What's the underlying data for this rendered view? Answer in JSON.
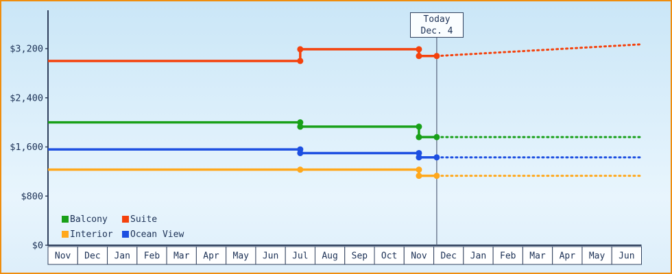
{
  "colors": {
    "frame_border": "#ef8d0e",
    "axis": "#2f3f5c",
    "text": "#1b3055",
    "month_box_fill": "#ffffff",
    "today_line": "#55617a",
    "today_box_fill": "#fafdff",
    "bg_top": "#cae6f7",
    "bg_mid": "#e8f5fd",
    "bg_bottom": "#ddeefa"
  },
  "chart_data": {
    "type": "line",
    "title": "",
    "x_axis": {
      "categories": [
        "Nov",
        "Dec",
        "Jan",
        "Feb",
        "Mar",
        "Apr",
        "May",
        "Jun",
        "Jul",
        "Aug",
        "Sep",
        "Oct",
        "Nov",
        "Dec",
        "Jan",
        "Feb",
        "Mar",
        "Apr",
        "May",
        "Jun"
      ],
      "note_x_units": "month index along axis; 0 = left axis, each month cell = 1 unit, month centers at i+0.5"
    },
    "y_axis": {
      "ticks": [
        {
          "label": "$0",
          "value": 0
        },
        {
          "label": "$800",
          "value": 800
        },
        {
          "label": "$1,600",
          "value": 1600
        },
        {
          "label": "$2,400",
          "value": 2400
        },
        {
          "label": "$3,200",
          "value": 3200
        }
      ],
      "ylim": [
        0,
        3824
      ],
      "grid": false
    },
    "today": {
      "line1": "Today",
      "line2": "Dec. 4",
      "x": 13.1
    },
    "legend": {
      "items": [
        "Balcony",
        "Suite",
        "Interior",
        "Ocean View"
      ],
      "position": "bottom-left-inside"
    },
    "series": [
      {
        "name": "Suite",
        "color": "#f4410c",
        "solid": [
          [
            0,
            3000
          ],
          [
            8.5,
            3000
          ],
          [
            8.5,
            3190
          ],
          [
            12.5,
            3190
          ],
          [
            12.5,
            3080
          ],
          [
            13.1,
            3080
          ]
        ],
        "dotted": [
          [
            13.1,
            3080
          ],
          [
            20,
            3270
          ]
        ],
        "markers": [
          [
            8.5,
            3000
          ],
          [
            8.5,
            3190
          ],
          [
            12.5,
            3190
          ],
          [
            12.5,
            3080
          ],
          [
            13.1,
            3080
          ]
        ]
      },
      {
        "name": "Balcony",
        "color": "#18a018",
        "solid": [
          [
            0,
            2000
          ],
          [
            8.5,
            2000
          ],
          [
            8.5,
            1930
          ],
          [
            12.5,
            1930
          ],
          [
            12.5,
            1760
          ],
          [
            13.1,
            1760
          ]
        ],
        "dotted": [
          [
            13.1,
            1760
          ],
          [
            20,
            1760
          ]
        ],
        "markers": [
          [
            8.5,
            2000
          ],
          [
            8.5,
            1930
          ],
          [
            12.5,
            1930
          ],
          [
            12.5,
            1760
          ],
          [
            13.1,
            1760
          ]
        ]
      },
      {
        "name": "Ocean View",
        "color": "#1d4fe1",
        "solid": [
          [
            0,
            1560
          ],
          [
            8.5,
            1560
          ],
          [
            8.5,
            1500
          ],
          [
            12.5,
            1500
          ],
          [
            12.5,
            1430
          ],
          [
            13.1,
            1430
          ]
        ],
        "dotted": [
          [
            13.1,
            1430
          ],
          [
            20,
            1430
          ]
        ],
        "markers": [
          [
            8.5,
            1560
          ],
          [
            8.5,
            1500
          ],
          [
            12.5,
            1500
          ],
          [
            12.5,
            1430
          ],
          [
            13.1,
            1430
          ]
        ]
      },
      {
        "name": "Interior",
        "color": "#ffa81c",
        "solid": [
          [
            0,
            1230
          ],
          [
            8.5,
            1230
          ],
          [
            12.5,
            1230
          ],
          [
            12.5,
            1130
          ],
          [
            13.1,
            1130
          ]
        ],
        "dotted": [
          [
            13.1,
            1130
          ],
          [
            20,
            1130
          ]
        ],
        "markers": [
          [
            8.5,
            1230
          ],
          [
            12.5,
            1230
          ],
          [
            12.5,
            1130
          ],
          [
            13.1,
            1130
          ]
        ]
      }
    ]
  }
}
